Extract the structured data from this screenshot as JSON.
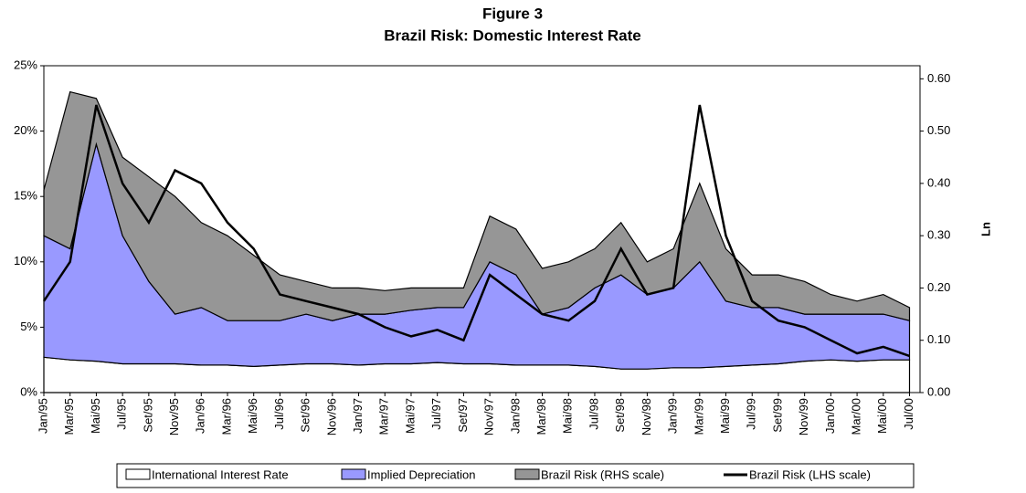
{
  "chart_data": {
    "type": "area",
    "title": "Figure 3",
    "subtitle": "Brazil Risk: Domestic Interest Rate",
    "categories": [
      "Jan/95",
      "Mar/95",
      "Mai/95",
      "Jul/95",
      "Set/95",
      "Nov/95",
      "Jan/96",
      "Mar/96",
      "Mai/96",
      "Jul/96",
      "Set/96",
      "Nov/96",
      "Jan/97",
      "Mar/97",
      "Mai/97",
      "Jul/97",
      "Set/97",
      "Nov/97",
      "Jan/98",
      "Mar/98",
      "Mai/98",
      "Jul/98",
      "Set/98",
      "Nov/98",
      "Jan/99",
      "Mar/99",
      "Mai/99",
      "Jul/99",
      "Set/99",
      "Nov/99",
      "Jan/00",
      "Mar/00",
      "Mai/00",
      "Jul/00"
    ],
    "series": [
      {
        "name": "International Interest Rate",
        "type": "area",
        "color": "#ffffff",
        "values": [
          2.7,
          2.5,
          2.4,
          2.2,
          2.2,
          2.2,
          2.1,
          2.1,
          2.0,
          2.1,
          2.2,
          2.2,
          2.1,
          2.2,
          2.2,
          2.3,
          2.2,
          2.2,
          2.1,
          2.1,
          2.1,
          2.0,
          1.8,
          1.8,
          1.9,
          1.9,
          2.0,
          2.1,
          2.2,
          2.4,
          2.5,
          2.4,
          2.5,
          2.5
        ]
      },
      {
        "name": "Implied Depreciation",
        "type": "area",
        "color": "#9999ff",
        "values": [
          9.3,
          8.5,
          16.6,
          9.8,
          6.3,
          3.8,
          4.4,
          3.4,
          3.5,
          3.4,
          3.8,
          3.3,
          3.9,
          3.8,
          4.1,
          4.2,
          4.3,
          7.8,
          6.9,
          3.9,
          4.4,
          6.0,
          7.2,
          5.7,
          6.1,
          8.1,
          5.0,
          4.4,
          4.3,
          3.6,
          3.5,
          3.6,
          3.5,
          3.0
        ]
      },
      {
        "name": "Brazil Risk (RHS scale)",
        "type": "area",
        "color": "#969696",
        "values": [
          3.5,
          12.0,
          3.5,
          6.0,
          8.0,
          9.0,
          6.5,
          6.5,
          5.0,
          3.5,
          2.5,
          2.5,
          2.0,
          1.8,
          1.7,
          1.5,
          1.5,
          3.5,
          3.5,
          3.5,
          3.5,
          3.0,
          4.0,
          2.5,
          3.0,
          6.0,
          4.0,
          2.5,
          2.5,
          2.5,
          1.5,
          1.0,
          1.5,
          1.0
        ]
      },
      {
        "name": "Brazil Risk (LHS scale)",
        "type": "line",
        "color": "#000000",
        "values": [
          7,
          10,
          22,
          16,
          13,
          17,
          16,
          13,
          11,
          7.5,
          7,
          6.5,
          6,
          5,
          4.3,
          4.8,
          4,
          9,
          7.5,
          6,
          5.5,
          7,
          11,
          7.5,
          8,
          22,
          12,
          7,
          5.5,
          5,
          4,
          3,
          3.5,
          2.8
        ]
      }
    ],
    "ylim": [
      0,
      25
    ],
    "yticks": [
      {
        "value": 0,
        "label": "0%"
      },
      {
        "value": 5,
        "label": "5%"
      },
      {
        "value": 10,
        "label": "10%"
      },
      {
        "value": 15,
        "label": "15%"
      },
      {
        "value": 20,
        "label": "20%"
      },
      {
        "value": 25,
        "label": "25%"
      }
    ],
    "y2lim": [
      0,
      0.625
    ],
    "y2ticks": [
      {
        "value": 0,
        "label": "0.00"
      },
      {
        "value": 0.1,
        "label": "0.10"
      },
      {
        "value": 0.2,
        "label": "0.20"
      },
      {
        "value": 0.3,
        "label": "0.30"
      },
      {
        "value": 0.4,
        "label": "0.40"
      },
      {
        "value": 0.5,
        "label": "0.50"
      },
      {
        "value": 0.6,
        "label": "0.60"
      }
    ],
    "y2label": "Ln",
    "legend": "bottom"
  }
}
